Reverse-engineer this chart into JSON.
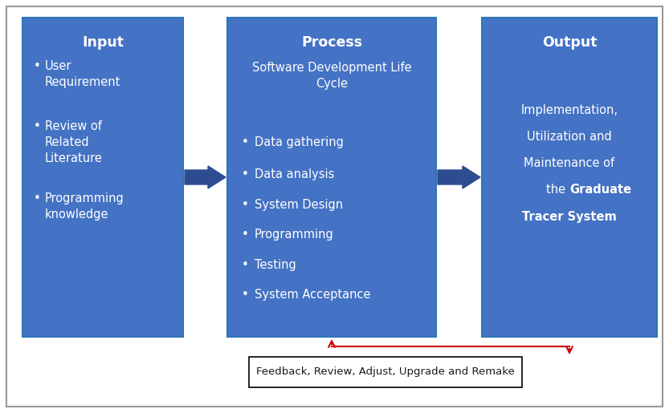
{
  "bg_color": "#ffffff",
  "box_color": "#4472C4",
  "box_edge_color": "#2E75B6",
  "text_color_white": "#ffffff",
  "text_color_black": "#1a1a1a",
  "arrow_fill_color": "#2E4D91",
  "feedback_arrow_color": "#CC0000",
  "outer_border_color": "#999999",
  "input_title": "Input",
  "input_items": [
    "User\nRequirement",
    "Review of\nRelated\nLiterature",
    "Programming\nknowledge"
  ],
  "process_title": "Process",
  "process_subtitle": "Software Development Life\nCycle",
  "process_items": [
    "Data gathering",
    "Data analysis",
    "System Design",
    "Programming",
    "Testing",
    "System Acceptance"
  ],
  "output_title": "Output",
  "output_line1": "Implementation,",
  "output_line2": "Utilization and",
  "output_line3": "Maintenance of",
  "output_line4_normal": "the ",
  "output_line4_bold": "Graduate",
  "output_line5_bold": "Tracer System",
  "feedback_text": "Feedback, Review, Adjust, Upgrade and Remake",
  "fig_w": 8.33,
  "fig_h": 5.15,
  "dpi": 100
}
